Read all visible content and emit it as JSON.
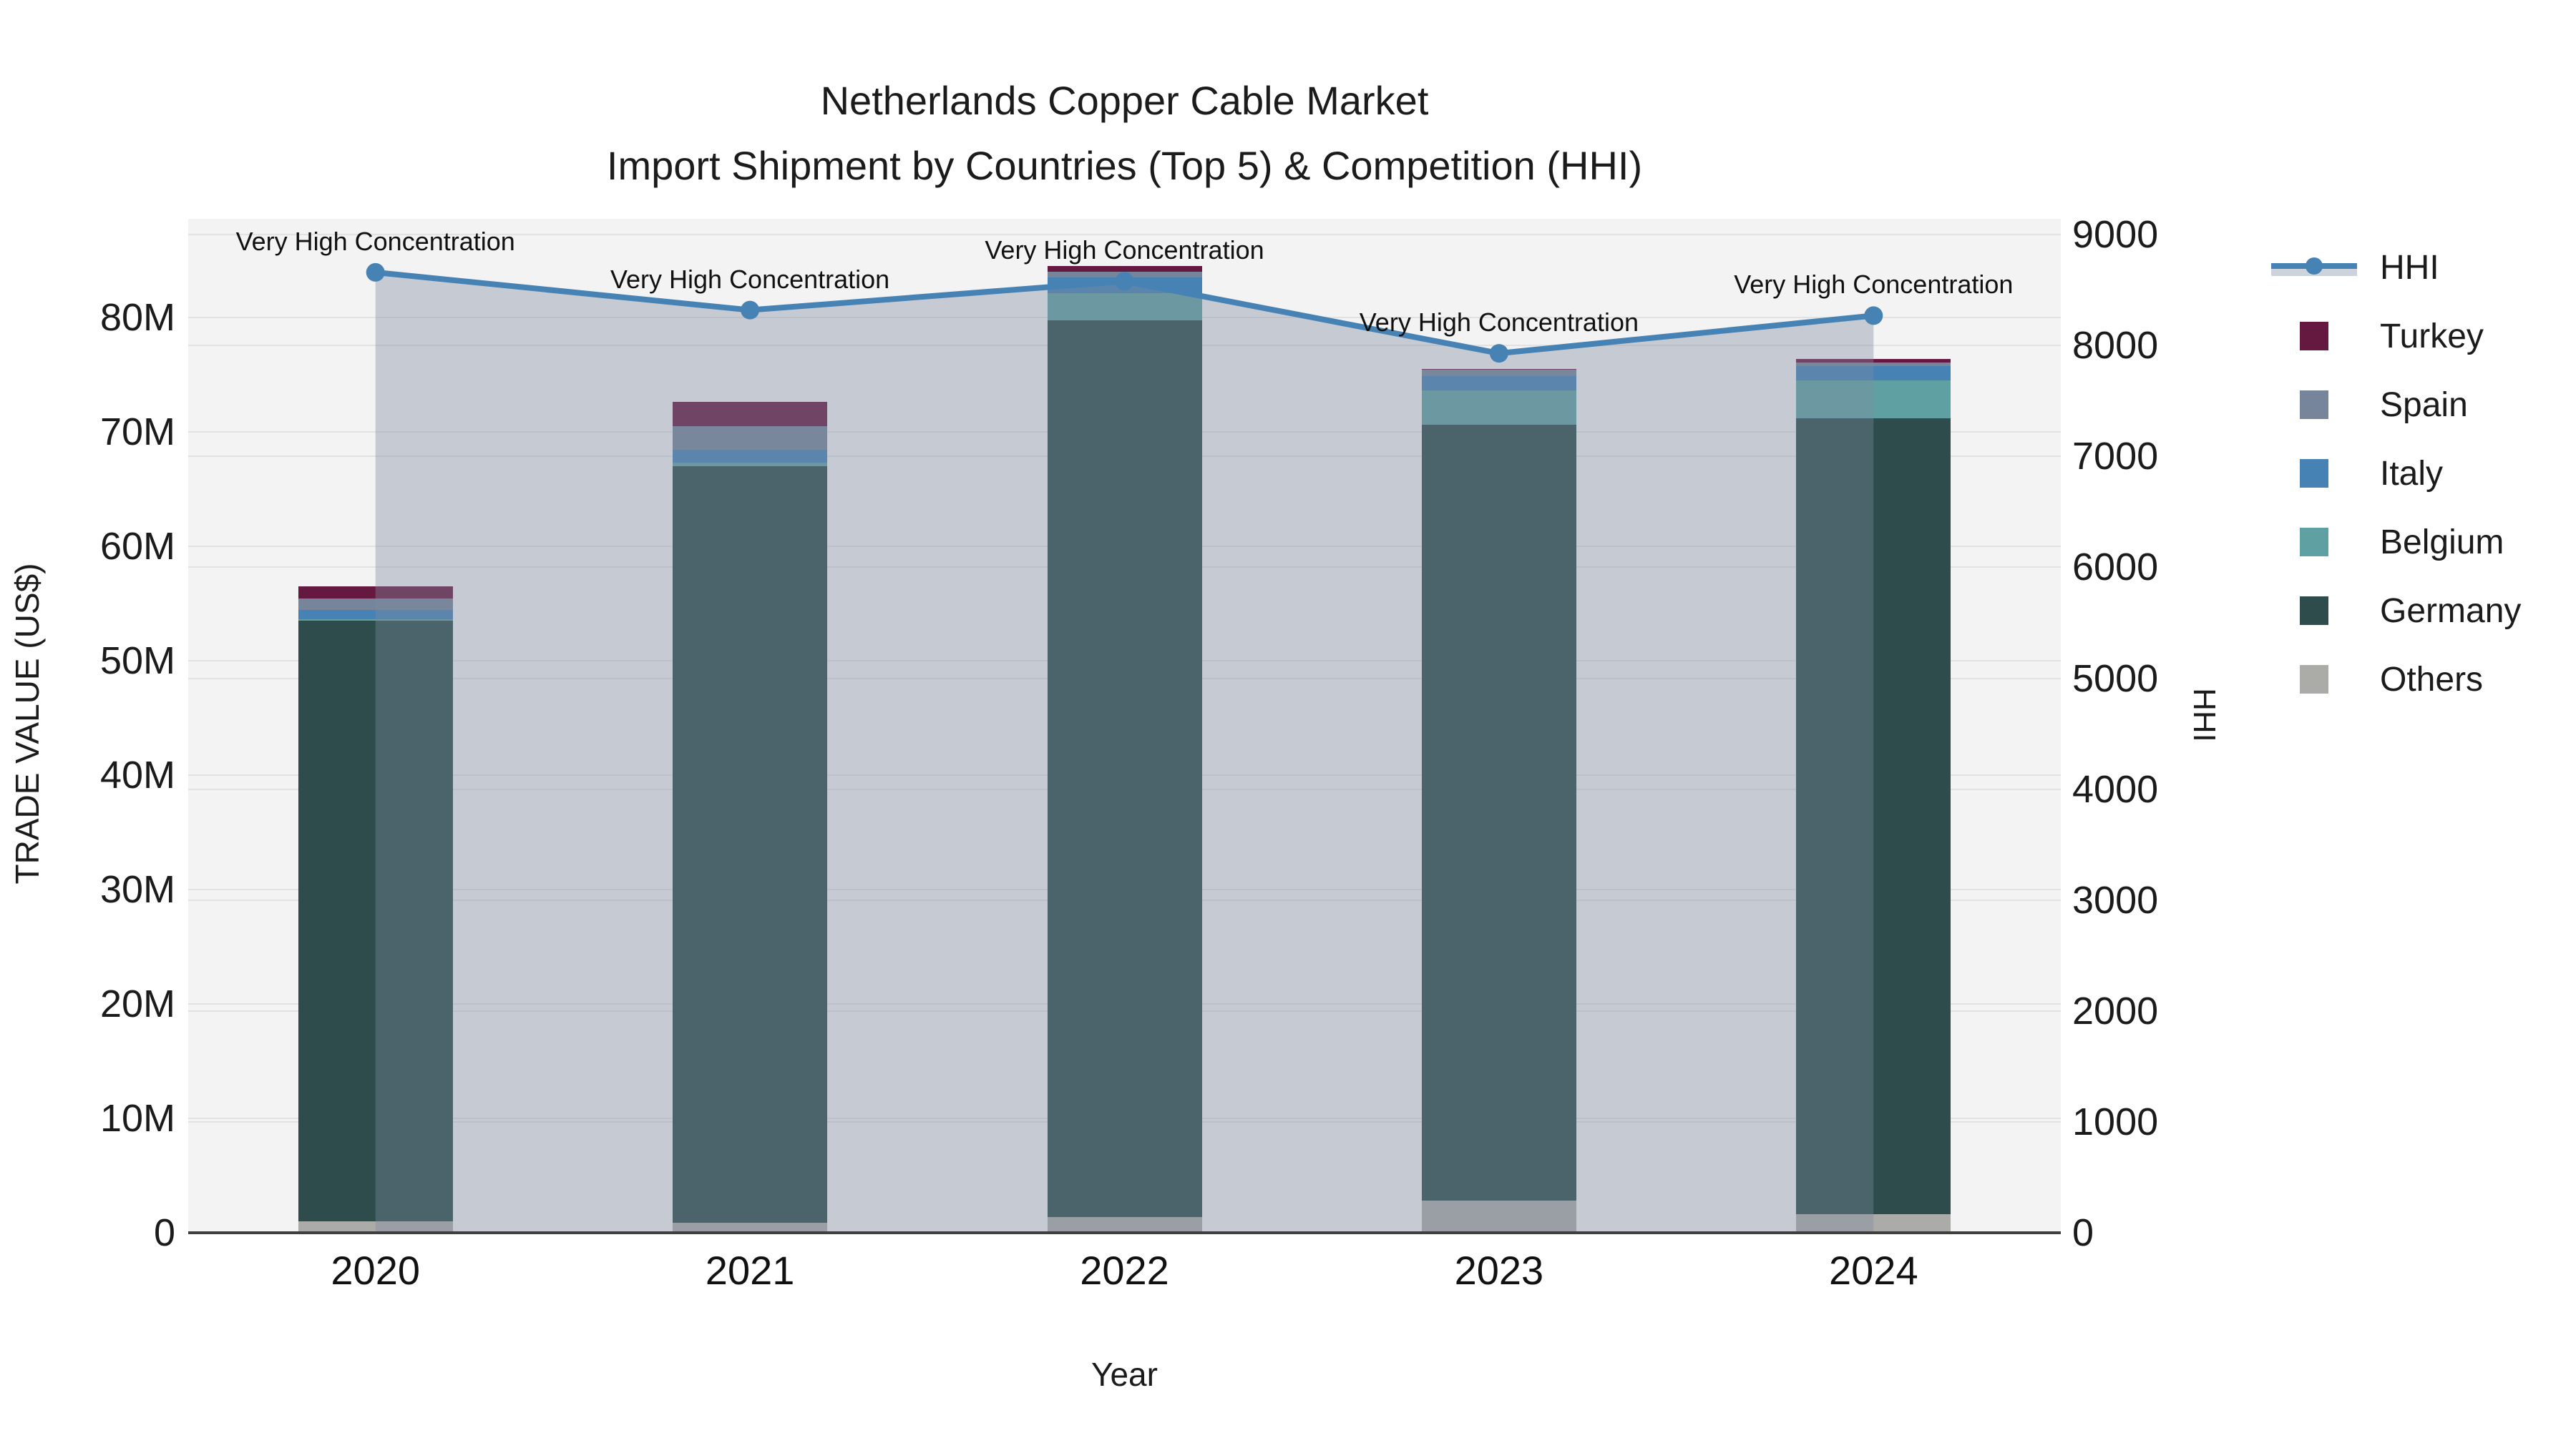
{
  "title": {
    "line1": "Netherlands Copper Cable Market",
    "line2": "Import Shipment by Countries (Top 5) & Competition (HHI)"
  },
  "axes": {
    "y_left": {
      "title": "TRADE VALUE (US$)",
      "ticks": [
        "0",
        "10M",
        "20M",
        "30M",
        "40M",
        "50M",
        "60M",
        "70M",
        "80M"
      ],
      "tick_values": [
        0,
        10,
        20,
        30,
        40,
        50,
        60,
        70,
        80
      ],
      "max": 88.6
    },
    "y_right": {
      "title": "HHI",
      "ticks": [
        "0",
        "1000",
        "2000",
        "3000",
        "4000",
        "5000",
        "6000",
        "7000",
        "8000",
        "9000"
      ],
      "tick_values": [
        0,
        1000,
        2000,
        3000,
        4000,
        5000,
        6000,
        7000,
        8000,
        9000
      ],
      "max": 9143
    },
    "x": {
      "title": "Year",
      "categories": [
        "2020",
        "2021",
        "2022",
        "2023",
        "2024"
      ]
    }
  },
  "legend": [
    {
      "label": "HHI",
      "type": "line",
      "color": "#4682b4"
    },
    {
      "label": "Turkey",
      "type": "box",
      "color": "#661940"
    },
    {
      "label": "Spain",
      "type": "box",
      "color": "#76859a"
    },
    {
      "label": "Italy",
      "type": "box",
      "color": "#4682b4"
    },
    {
      "label": "Belgium",
      "type": "box",
      "color": "#5fa1a2"
    },
    {
      "label": "Germany",
      "type": "box",
      "color": "#2d4c4b"
    },
    {
      "label": "Others",
      "type": "box",
      "color": "#ababa8"
    }
  ],
  "chart_data": {
    "type": "bar",
    "subtype": "stacked-bars-with-line",
    "title": "Netherlands Copper Cable Market — Import Shipment by Countries (Top 5) & Competition (HHI)",
    "xlabel": "Year",
    "ylabel": "TRADE VALUE (US$)",
    "ylabel_right": "HHI",
    "categories": [
      "2020",
      "2021",
      "2022",
      "2023",
      "2024"
    ],
    "stack_order_bottom_to_top": [
      "Others",
      "Germany",
      "Belgium",
      "Italy",
      "Spain",
      "Turkey"
    ],
    "series": [
      {
        "name": "Others",
        "unit": "M US$",
        "values": [
          1.0,
          0.9,
          1.4,
          2.8,
          1.65
        ]
      },
      {
        "name": "Germany",
        "unit": "M US$",
        "values": [
          52.5,
          66.1,
          78.35,
          67.8,
          69.5
        ]
      },
      {
        "name": "Belgium",
        "unit": "M US$",
        "values": [
          0.1,
          0.31,
          2.37,
          3.0,
          3.31
        ]
      },
      {
        "name": "Italy",
        "unit": "M US$",
        "values": [
          0.81,
          1.12,
          1.37,
          1.25,
          1.25
        ]
      },
      {
        "name": "Spain",
        "unit": "M US$",
        "values": [
          1.0,
          2.06,
          0.5,
          0.56,
          0.31
        ]
      },
      {
        "name": "Turkey",
        "unit": "M US$",
        "values": [
          1.06,
          2.12,
          0.5,
          0.1,
          0.31
        ]
      }
    ],
    "line_series": {
      "name": "HHI",
      "axis": "right",
      "values": [
        8660,
        8320,
        8580,
        7930,
        8270
      ]
    },
    "annotations": [
      "Very High Concentration",
      "Very High Concentration",
      "Very High Concentration",
      "Very High Concentration",
      "Very High Concentration"
    ],
    "ylim_left": [
      0,
      88.6
    ],
    "ylim_right": [
      0,
      9143
    ],
    "grid": true,
    "legend_position": "right"
  },
  "colors": {
    "plot_bg": "#f3f3f3",
    "page_bg": "#ffffff",
    "gridline": "#e2e2e2",
    "axis_line": "#3f3f3f",
    "hhi_line": "#4682b4",
    "hhi_area_fill": "rgba(125,140,160,0.38)",
    "Turkey": "#661940",
    "Spain": "#76859a",
    "Italy": "#4682b4",
    "Belgium": "#5fa1a2",
    "Germany": "#2d4c4b",
    "Others": "#ababa8"
  }
}
